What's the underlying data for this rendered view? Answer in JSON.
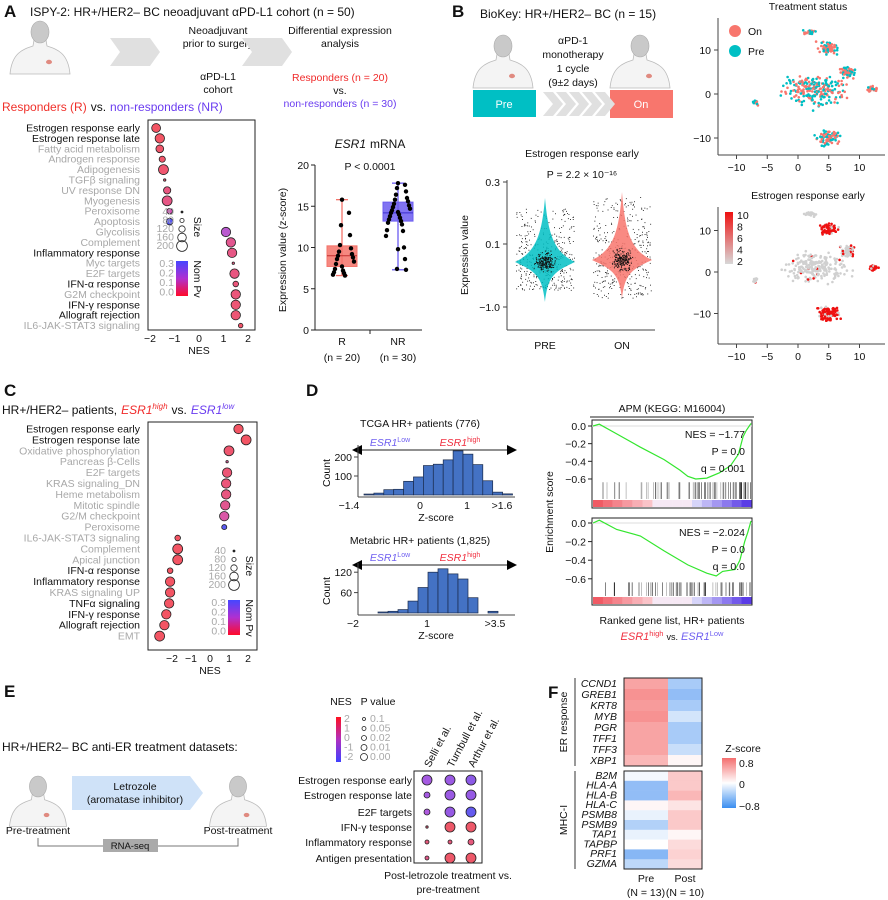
{
  "panel_labels": {
    "A": "A",
    "B": "B",
    "C": "C",
    "D": "D",
    "E": "E",
    "F": "F"
  },
  "A": {
    "title": "ISPY-2: HR+/HER2– BC neoadjuvant αPD-L1 cohort (n = 50)",
    "step1": [
      "Neoadjuvant",
      "prior to surgery"
    ],
    "step2": [
      "αPD-L1",
      "cohort"
    ],
    "step3": [
      "Differential expression",
      "analysis"
    ],
    "responders": "Responders (n = 20)",
    "vs": "vs.",
    "nonresponders": "non-responders (n = 30)",
    "comparison_r": "Responders (R)",
    "comparison_vs": "vs.",
    "comparison_nr": "non-responders (NR)"
  },
  "B": {
    "title": "BioKey: HR+/HER2– BC (n = 15)",
    "treatment": [
      "αPD-1",
      "monotherapy",
      "1 cycle",
      "(9±2 days)"
    ],
    "pre_label": "Pre",
    "on_label": "On"
  },
  "C": {
    "title_prefix": "HR+/HER2– patients,",
    "esr1_high": "ESR1",
    "high_sup": "high",
    "vs": "vs.",
    "esr1_low": "ESR1",
    "low_sup": "low"
  },
  "E": {
    "title": "HR+/HER2– BC anti-ER treatment datasets:",
    "drug": [
      "Letrozole",
      "(aromatase inhibitor)"
    ],
    "pre": "Pre-treatment",
    "post": "Post-treatment",
    "assay": "RNA-seq"
  },
  "colors": {
    "red": "#f4414f",
    "purple": "#7a3cf0",
    "teal": "#00bfc4",
    "salmon": "#f8766d",
    "gsea_line": "#33e62e",
    "hist_bar": "#4472c4"
  },
  "chart_data": [
    {
      "id": "A_dotplot",
      "type": "scatter",
      "subtype": "dot_plot",
      "xlabel": "NES",
      "xticks": [
        "−2",
        "−1",
        "0",
        "1",
        "2"
      ],
      "size_legend_title": "Size",
      "size_legend": [
        "40",
        "80",
        "120",
        "160",
        "200"
      ],
      "color_legend_title": "Nom Pv",
      "color_legend": [
        "0.3",
        "0.2",
        "0.1",
        "0.0"
      ],
      "rows": [
        {
          "label": "Estrogen response early",
          "nes": -1.75,
          "size": 160,
          "pval": 0.0,
          "highlight": true
        },
        {
          "label": "Estrogen response late",
          "nes": -1.6,
          "size": 170,
          "pval": 0.0,
          "highlight": true
        },
        {
          "label": "Fatty acid metabolism",
          "nes": -1.6,
          "size": 140,
          "pval": 0.01,
          "highlight": false
        },
        {
          "label": "Androgen response",
          "nes": -1.5,
          "size": 110,
          "pval": 0.01,
          "highlight": false
        },
        {
          "label": "Adipogenesis",
          "nes": -1.45,
          "size": 180,
          "pval": 0.02,
          "highlight": false
        },
        {
          "label": "TGFβ signaling",
          "nes": -1.4,
          "size": 40,
          "pval": 0.03,
          "highlight": false
        },
        {
          "label": "UV response DN",
          "nes": -1.3,
          "size": 130,
          "pval": 0.05,
          "highlight": false
        },
        {
          "label": "Myogenesis",
          "nes": -1.3,
          "size": 180,
          "pval": 0.06,
          "highlight": false
        },
        {
          "label": "Peroxisome",
          "nes": -1.2,
          "size": 100,
          "pval": 0.15,
          "highlight": false
        },
        {
          "label": "Apoptosis",
          "nes": -1.2,
          "size": 120,
          "pval": 0.3,
          "highlight": false
        },
        {
          "label": "Glycolisis",
          "nes": 1.1,
          "size": 170,
          "pval": 0.2,
          "highlight": false
        },
        {
          "label": "Complement",
          "nes": 1.3,
          "size": 170,
          "pval": 0.08,
          "highlight": false
        },
        {
          "label": "Inflammatory response",
          "nes": 1.35,
          "size": 170,
          "pval": 0.06,
          "highlight": true
        },
        {
          "label": "Myc targets",
          "nes": 1.4,
          "size": 40,
          "pval": 0.05,
          "highlight": false
        },
        {
          "label": "E2F targets",
          "nes": 1.45,
          "size": 170,
          "pval": 0.05,
          "highlight": false
        },
        {
          "label": "IFN-α response",
          "nes": 1.5,
          "size": 100,
          "pval": 0.04,
          "highlight": true
        },
        {
          "label": "G2M checkpoint",
          "nes": 1.5,
          "size": 170,
          "pval": 0.04,
          "highlight": false
        },
        {
          "label": "IFN-γ response",
          "nes": 1.5,
          "size": 170,
          "pval": 0.03,
          "highlight": true
        },
        {
          "label": "Allograft rejection",
          "nes": 1.5,
          "size": 170,
          "pval": 0.03,
          "highlight": true
        },
        {
          "label": "IL6-JAK-STAT3 signaling",
          "nes": 1.7,
          "size": 80,
          "pval": 0.01,
          "highlight": false
        }
      ]
    },
    {
      "id": "A_boxplot",
      "type": "box",
      "title": "ESR1",
      "title_suffix": "mRNA",
      "annotation": "P < 0.0001",
      "ylabel": "Expression value (z-score)",
      "ylim": [
        0,
        20
      ],
      "yticks": [
        0,
        5,
        10,
        15,
        20
      ],
      "groups": [
        {
          "name": "R",
          "n_label": "(n = 20)",
          "median": 9.0,
          "q1": 7.7,
          "q3": 10.2,
          "min": 6.6,
          "max": 15.8,
          "color": "#f4736a",
          "points": [
            15.8,
            14.2,
            12.7,
            11.5,
            10.3,
            9.9,
            9.5,
            9.2,
            9.0,
            8.8,
            8.6,
            8.3,
            8.0,
            7.7,
            7.4,
            7.2,
            7.0,
            6.9,
            6.7,
            6.6
          ]
        },
        {
          "name": "NR",
          "n_label": "(n = 30)",
          "median": 14.2,
          "q1": 13.2,
          "q3": 15.5,
          "min": 7.3,
          "max": 17.8,
          "color": "#6b5cf0",
          "points": [
            17.8,
            17.6,
            17.2,
            16.8,
            16.4,
            16.0,
            15.8,
            15.6,
            15.3,
            15.1,
            14.9,
            14.7,
            14.5,
            14.3,
            14.2,
            14.0,
            13.8,
            13.6,
            13.4,
            13.2,
            13.0,
            12.8,
            12.1,
            12.0,
            11.4,
            10.0,
            9.8,
            8.6,
            7.4,
            7.3
          ]
        }
      ]
    },
    {
      "id": "B_violin",
      "type": "violin",
      "title": "Estrogen response early",
      "annotation": "P = 2.2 × 10⁻¹⁶",
      "ylabel": "Expression value",
      "yticks": [
        "0.3",
        "0.1",
        "−1.0"
      ],
      "groups": [
        {
          "name": "PRE",
          "color": "#00bfc4"
        },
        {
          "name": "ON",
          "color": "#f8766d"
        }
      ]
    },
    {
      "id": "B_umap_status",
      "type": "scatter",
      "title": "Treatment status",
      "legend": [
        {
          "name": "On",
          "color": "#f8766d"
        },
        {
          "name": "Pre",
          "color": "#00bfc4"
        }
      ],
      "legend_placement": "top-left",
      "xticks": [
        "−10",
        "−5",
        "0",
        "5",
        "10"
      ],
      "yticks": [
        "10",
        "0",
        "−10"
      ]
    },
    {
      "id": "B_umap_estrogen",
      "type": "scatter",
      "title": "Estrogen response early",
      "colorbar": [
        "10",
        "8",
        "6",
        "4",
        "2"
      ],
      "xticks": [
        "−10",
        "−5",
        "0",
        "5",
        "10"
      ],
      "yticks": [
        "10",
        "0",
        "−10"
      ]
    },
    {
      "id": "C_dotplot",
      "type": "scatter",
      "subtype": "dot_plot",
      "xlabel": "NES",
      "xticks": [
        "−2",
        "−1",
        "0",
        "1",
        "2"
      ],
      "size_legend_title": "Size",
      "size_legend": [
        "40",
        "80",
        "120",
        "160",
        "200"
      ],
      "color_legend_title": "Nom Pv",
      "color_legend": [
        "0.3",
        "0.2",
        "0.1",
        "0.0"
      ],
      "rows": [
        {
          "label": "Estrogen response early",
          "nes": 1.5,
          "size": 170,
          "pval": 0.0,
          "highlight": true
        },
        {
          "label": "Estrogen response late",
          "nes": 1.9,
          "size": 180,
          "pval": 0.0,
          "highlight": true
        },
        {
          "label": "Oxidative phosphorylation",
          "nes": 1.0,
          "size": 180,
          "pval": 0.02,
          "highlight": false
        },
        {
          "label": "Pancreas β-Cells",
          "nes": 0.9,
          "size": 40,
          "pval": 0.1,
          "highlight": false
        },
        {
          "label": "E2F targets",
          "nes": 0.9,
          "size": 170,
          "pval": 0.03,
          "highlight": false
        },
        {
          "label": "KRAS signaling_DN",
          "nes": 0.85,
          "size": 170,
          "pval": 0.04,
          "highlight": false
        },
        {
          "label": "Heme metabolism",
          "nes": 0.85,
          "size": 170,
          "pval": 0.05,
          "highlight": false
        },
        {
          "label": "Mitotic spindle",
          "nes": 0.8,
          "size": 170,
          "pval": 0.08,
          "highlight": false
        },
        {
          "label": "G2/M checkpoint",
          "nes": 0.75,
          "size": 170,
          "pval": 0.12,
          "highlight": false
        },
        {
          "label": "Peroxisome",
          "nes": 0.75,
          "size": 90,
          "pval": 0.3,
          "highlight": false
        },
        {
          "label": "IL6-JAK-STAT3 signaling",
          "nes": -1.7,
          "size": 100,
          "pval": 0.0,
          "highlight": false
        },
        {
          "label": "Complement",
          "nes": -1.7,
          "size": 180,
          "pval": 0.0,
          "highlight": false
        },
        {
          "label": "Apical junction",
          "nes": -1.7,
          "size": 180,
          "pval": 0.0,
          "highlight": false
        },
        {
          "label": "IFN-α response",
          "nes": -2.1,
          "size": 100,
          "pval": 0.0,
          "highlight": true
        },
        {
          "label": "Inflammatory response",
          "nes": -2.1,
          "size": 170,
          "pval": 0.0,
          "highlight": true
        },
        {
          "label": "KRAS signaling UP",
          "nes": -2.1,
          "size": 170,
          "pval": 0.0,
          "highlight": false
        },
        {
          "label": "TNFα signaling",
          "nes": -2.15,
          "size": 170,
          "pval": 0.0,
          "highlight": true
        },
        {
          "label": "IFN-γ response",
          "nes": -2.3,
          "size": 170,
          "pval": 0.0,
          "highlight": true
        },
        {
          "label": "Allograft rejection",
          "nes": -2.4,
          "size": 170,
          "pval": 0.0,
          "highlight": true
        },
        {
          "label": "EMT",
          "nes": -2.65,
          "size": 180,
          "pval": 0.0,
          "highlight": false
        }
      ]
    },
    {
      "id": "D_hist_tcga",
      "type": "bar",
      "subtype": "histogram",
      "title": "TCGA  HR+ patients (776)",
      "xlabel": "Z-score",
      "ylabel": "Count",
      "xtick_labels": [
        "−1.4",
        "0",
        "1",
        ">1.6"
      ],
      "yticks": [
        100,
        200
      ],
      "counts": [
        5,
        10,
        28,
        30,
        72,
        95,
        155,
        162,
        185,
        232,
        215,
        160,
        75,
        15,
        6
      ],
      "arrow_left": "ESR1",
      "arrow_left_sup": "Low",
      "arrow_right": "ESR1",
      "arrow_right_sup": "high"
    },
    {
      "id": "D_hist_metabric",
      "type": "bar",
      "subtype": "histogram",
      "title": "Metabric  HR+ patients (1,825)",
      "xlabel": "Z-score",
      "ylabel": "Count",
      "xtick_labels": [
        "−2",
        "1",
        ">3.5"
      ],
      "yticks": [
        60,
        120
      ],
      "counts": [
        3,
        5,
        10,
        35,
        75,
        120,
        130,
        115,
        100,
        45,
        0,
        5
      ],
      "arrow_left": "ESR1",
      "arrow_left_sup": "Low",
      "arrow_right": "ESR1",
      "arrow_right_sup": "high"
    },
    {
      "id": "D_gsea",
      "type": "line",
      "title": "APM (KEGG: M16004)",
      "ylabel": "Enrichment score",
      "xlabel": "Ranked gene list, HR+ patients",
      "xlabel2_high": "ESR1",
      "xlabel2_high_sup": "high",
      "xlabel2_vs": "vs.",
      "xlabel2_low": "ESR1",
      "xlabel2_low_sup": "Low",
      "panels": [
        {
          "nes_text": "NES = −1.77",
          "p_text": "P = 0.0",
          "q_text": "q = 0.001",
          "yticks": [
            "0.0",
            "−0.2",
            "−0.4",
            "−0.6"
          ],
          "curve": [
            [
              0,
              0
            ],
            [
              0.04,
              0.02
            ],
            [
              0.15,
              -0.09
            ],
            [
              0.3,
              -0.24
            ],
            [
              0.45,
              -0.38
            ],
            [
              0.55,
              -0.5
            ],
            [
              0.6,
              -0.57
            ],
            [
              0.65,
              -0.6
            ],
            [
              0.72,
              -0.59
            ],
            [
              0.8,
              -0.53
            ],
            [
              0.87,
              -0.45
            ],
            [
              0.92,
              -0.32
            ],
            [
              0.95,
              -0.12
            ],
            [
              0.97,
              -0.05
            ],
            [
              1,
              0.03
            ]
          ]
        },
        {
          "nes_text": "NES = −2.024",
          "p_text": "P = 0.0",
          "q_text": "q = 0.0",
          "yticks": [
            "0.0",
            "−0.2",
            "−0.4",
            "−0.6"
          ],
          "curve": [
            [
              0,
              0
            ],
            [
              0.04,
              0.03
            ],
            [
              0.15,
              -0.07
            ],
            [
              0.3,
              -0.14
            ],
            [
              0.45,
              -0.3
            ],
            [
              0.6,
              -0.45
            ],
            [
              0.72,
              -0.54
            ],
            [
              0.78,
              -0.57
            ],
            [
              0.82,
              -0.52
            ],
            [
              0.9,
              -0.5
            ],
            [
              0.93,
              -0.4
            ],
            [
              0.96,
              -0.2
            ],
            [
              0.98,
              -0.1
            ],
            [
              1,
              0.02
            ]
          ]
        }
      ]
    },
    {
      "id": "E_dotplot",
      "type": "scatter",
      "subtype": "dot_plot",
      "nes_legend_title": "NES",
      "nes_legend": [
        "2",
        "1",
        "0",
        "-1",
        "-2"
      ],
      "p_legend_title": "P value",
      "p_legend": [
        "0.1",
        "0.05",
        "0.02",
        "0.01",
        "0.00"
      ],
      "columns": [
        "Selli et al.",
        "Turnbull et al.",
        "Arthur et al."
      ],
      "rows": [
        "Estrogen response early",
        "Estrogen response late",
        "E2F targets",
        "IFN-γ tesponse",
        "Inflammatory response",
        "Antigen presentation"
      ],
      "nes": [
        [
          -0.5,
          -0.7,
          -1.0
        ],
        [
          -0.5,
          -0.7,
          -0.8
        ],
        [
          -0.3,
          -0.8,
          -1.8
        ],
        [
          1.5,
          1.8,
          1.8
        ],
        [
          1.5,
          1.5,
          1.5
        ],
        [
          1.3,
          1.8,
          1.8
        ]
      ],
      "pval": [
        [
          0.0,
          0.0,
          0.0
        ],
        [
          0.02,
          0.0,
          0.0
        ],
        [
          0.02,
          0.0,
          0.0
        ],
        [
          0.1,
          0.0,
          0.0
        ],
        [
          0.05,
          0.05,
          0.02
        ],
        [
          0.05,
          0.0,
          0.0
        ]
      ],
      "footer": [
        "Post-letrozole treatment vs.",
        "pre-treatment"
      ]
    },
    {
      "id": "F_heatmap",
      "type": "heatmap",
      "columns": [
        "Pre",
        "Post"
      ],
      "column_n": [
        "(N = 13)",
        "(N = 10)"
      ],
      "colorbar_title": "Z-score",
      "colorbar_ticks": [
        "0.8",
        "0",
        "−0.8"
      ],
      "groups": [
        {
          "name": "ER response",
          "genes": [
            "CCND1",
            "GREB1",
            "KRT8",
            "MYB",
            "PGR",
            "TFF1",
            "TFF3",
            "XBP1"
          ],
          "values": [
            [
              0.5,
              -0.4
            ],
            [
              0.6,
              -0.5
            ],
            [
              0.55,
              -0.4
            ],
            [
              0.6,
              -0.2
            ],
            [
              0.5,
              -0.4
            ],
            [
              0.5,
              -0.4
            ],
            [
              0.5,
              -0.25
            ],
            [
              0.4,
              0.05
            ]
          ]
        },
        {
          "name": "MHC-I",
          "genes": [
            "B2M",
            "HLA-A",
            "HLA-B",
            "HLA-C",
            "PSMB8",
            "PSMB9",
            "TAP1",
            "TAPBP",
            "PRF1",
            "GZMA"
          ],
          "values": [
            [
              -0.05,
              0.3
            ],
            [
              -0.5,
              0.3
            ],
            [
              -0.5,
              0.4
            ],
            [
              0.05,
              0.15
            ],
            [
              -0.1,
              0.3
            ],
            [
              -0.35,
              0.3
            ],
            [
              -0.1,
              0.05
            ],
            [
              0.0,
              0.2
            ],
            [
              -0.55,
              0.25
            ],
            [
              -0.3,
              0.2
            ]
          ]
        }
      ]
    }
  ]
}
